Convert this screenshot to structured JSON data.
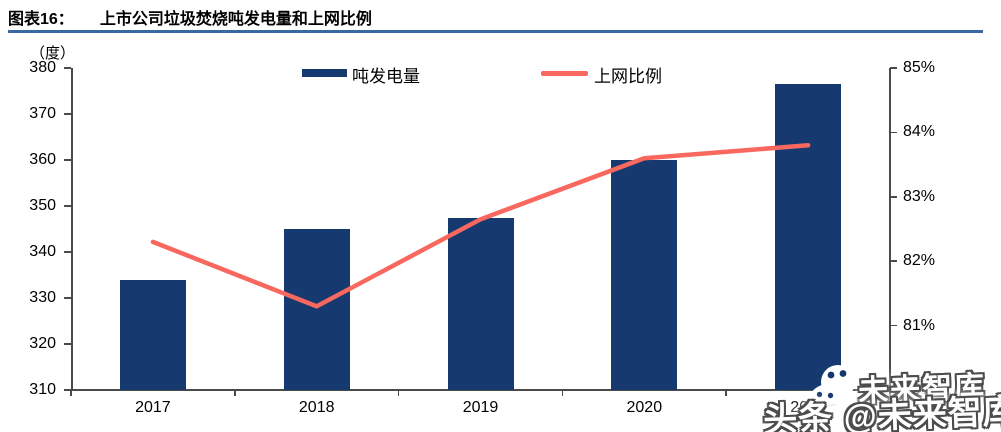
{
  "figure": {
    "caption_prefix": "图表16：",
    "caption_title": "上市公司垃圾焚烧吨发电量和上网比例",
    "rule_color": "#3A68A0"
  },
  "chart_data": {
    "type": "combo-bar-line",
    "title": "上市公司垃圾焚烧吨发电量和上网比例",
    "categories": [
      "2017",
      "2018",
      "2019",
      "2020",
      "2021"
    ],
    "series": [
      {
        "name": "吨发电量",
        "type": "bar",
        "axis": "left",
        "color": "#163A6F",
        "values": [
          334,
          345,
          347.5,
          360,
          376.5
        ]
      },
      {
        "name": "上网比例",
        "type": "line",
        "axis": "right",
        "color": "#F8685E",
        "values": [
          82.3,
          81.3,
          82.65,
          83.6,
          83.8
        ]
      }
    ],
    "left_axis": {
      "unit": "（度）",
      "min": 310,
      "max": 380,
      "tick_values": [
        310,
        320,
        330,
        340,
        350,
        360,
        370,
        380
      ],
      "tick_labels": [
        "310",
        "320",
        "330",
        "340",
        "350",
        "360",
        "370",
        "380"
      ]
    },
    "right_axis": {
      "min": 80,
      "max": 85,
      "tick_values": [
        80,
        81,
        82,
        83,
        84,
        85
      ],
      "tick_labels": [
        "80%",
        "81%",
        "82%",
        "83%",
        "84%",
        "85%"
      ]
    },
    "legend_position": "top",
    "grid": false
  },
  "watermark": {
    "line1": "未来智库",
    "line2": "头条 @未来智库"
  }
}
